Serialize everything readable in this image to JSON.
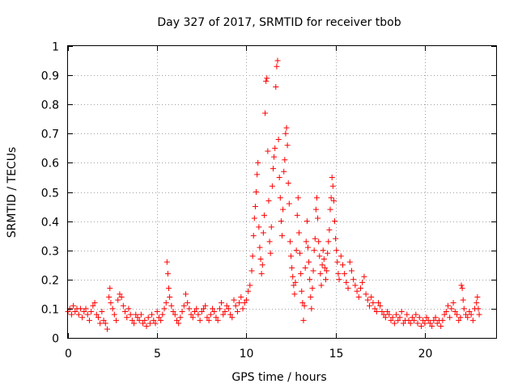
{
  "chart_data": {
    "type": "scatter",
    "title": "Day 327 of 2017, SRMTID for receiver tbob",
    "xlabel": "GPS time / hours",
    "ylabel": "SRMTID / TECUs",
    "xlim": [
      0,
      24
    ],
    "ylim": [
      0,
      1
    ],
    "x_ticks": [
      0,
      5,
      10,
      15,
      20
    ],
    "y_ticks": [
      0,
      0.1,
      0.2,
      0.3,
      0.4,
      0.5,
      0.6,
      0.7,
      0.8,
      0.9,
      1
    ],
    "x_tick_labels": [
      "0",
      "5",
      "10",
      "15",
      "20"
    ],
    "y_tick_labels": [
      "0",
      "0.1",
      "0.2",
      "0.3",
      "0.4",
      "0.5",
      "0.6",
      "0.7",
      "0.8",
      "0.9",
      "1"
    ],
    "grid": true,
    "marker": "plus",
    "marker_color": "#ff0000",
    "series": [
      {
        "name": "SRMTID",
        "points": [
          [
            0.0,
            0.09
          ],
          [
            0.1,
            0.1
          ],
          [
            0.2,
            0.08
          ],
          [
            0.3,
            0.11
          ],
          [
            0.4,
            0.09
          ],
          [
            0.5,
            0.1
          ],
          [
            0.6,
            0.08
          ],
          [
            0.7,
            0.1
          ],
          [
            0.8,
            0.07
          ],
          [
            0.9,
            0.09
          ],
          [
            1.0,
            0.1
          ],
          [
            1.1,
            0.08
          ],
          [
            1.2,
            0.06
          ],
          [
            1.3,
            0.09
          ],
          [
            1.4,
            0.11
          ],
          [
            1.5,
            0.12
          ],
          [
            1.6,
            0.08
          ],
          [
            1.7,
            0.07
          ],
          [
            1.8,
            0.05
          ],
          [
            1.9,
            0.09
          ],
          [
            2.0,
            0.06
          ],
          [
            2.1,
            0.05
          ],
          [
            2.2,
            0.03
          ],
          [
            2.3,
            0.14
          ],
          [
            2.35,
            0.17
          ],
          [
            2.4,
            0.12
          ],
          [
            2.5,
            0.1
          ],
          [
            2.6,
            0.08
          ],
          [
            2.7,
            0.06
          ],
          [
            2.8,
            0.13
          ],
          [
            2.9,
            0.15
          ],
          [
            3.0,
            0.14
          ],
          [
            3.1,
            0.11
          ],
          [
            3.2,
            0.09
          ],
          [
            3.3,
            0.07
          ],
          [
            3.4,
            0.1
          ],
          [
            3.5,
            0.08
          ],
          [
            3.6,
            0.06
          ],
          [
            3.7,
            0.05
          ],
          [
            3.8,
            0.08
          ],
          [
            3.9,
            0.07
          ],
          [
            4.0,
            0.06
          ],
          [
            4.1,
            0.08
          ],
          [
            4.2,
            0.05
          ],
          [
            4.3,
            0.06
          ],
          [
            4.4,
            0.04
          ],
          [
            4.5,
            0.07
          ],
          [
            4.6,
            0.05
          ],
          [
            4.7,
            0.08
          ],
          [
            4.8,
            0.06
          ],
          [
            4.9,
            0.05
          ],
          [
            5.0,
            0.09
          ],
          [
            5.1,
            0.07
          ],
          [
            5.2,
            0.06
          ],
          [
            5.3,
            0.08
          ],
          [
            5.4,
            0.1
          ],
          [
            5.5,
            0.12
          ],
          [
            5.55,
            0.26
          ],
          [
            5.6,
            0.22
          ],
          [
            5.65,
            0.17
          ],
          [
            5.7,
            0.14
          ],
          [
            5.8,
            0.11
          ],
          [
            5.9,
            0.09
          ],
          [
            6.0,
            0.08
          ],
          [
            6.1,
            0.06
          ],
          [
            6.2,
            0.05
          ],
          [
            6.3,
            0.07
          ],
          [
            6.4,
            0.09
          ],
          [
            6.5,
            0.11
          ],
          [
            6.6,
            0.15
          ],
          [
            6.7,
            0.12
          ],
          [
            6.8,
            0.1
          ],
          [
            6.9,
            0.08
          ],
          [
            7.0,
            0.07
          ],
          [
            7.1,
            0.09
          ],
          [
            7.2,
            0.1
          ],
          [
            7.3,
            0.08
          ],
          [
            7.4,
            0.06
          ],
          [
            7.5,
            0.09
          ],
          [
            7.6,
            0.1
          ],
          [
            7.7,
            0.11
          ],
          [
            7.8,
            0.07
          ],
          [
            7.9,
            0.06
          ],
          [
            8.0,
            0.08
          ],
          [
            8.1,
            0.1
          ],
          [
            8.2,
            0.09
          ],
          [
            8.3,
            0.07
          ],
          [
            8.4,
            0.06
          ],
          [
            8.5,
            0.1
          ],
          [
            8.6,
            0.12
          ],
          [
            8.7,
            0.08
          ],
          [
            8.8,
            0.09
          ],
          [
            8.9,
            0.11
          ],
          [
            9.0,
            0.1
          ],
          [
            9.1,
            0.08
          ],
          [
            9.2,
            0.07
          ],
          [
            9.3,
            0.13
          ],
          [
            9.4,
            0.11
          ],
          [
            9.5,
            0.09
          ],
          [
            9.6,
            0.12
          ],
          [
            9.7,
            0.14
          ],
          [
            9.8,
            0.1
          ],
          [
            9.9,
            0.12
          ],
          [
            10.0,
            0.13
          ],
          [
            10.1,
            0.16
          ],
          [
            10.2,
            0.18
          ],
          [
            10.3,
            0.23
          ],
          [
            10.35,
            0.28
          ],
          [
            10.4,
            0.35
          ],
          [
            10.45,
            0.41
          ],
          [
            10.5,
            0.45
          ],
          [
            10.55,
            0.5
          ],
          [
            10.6,
            0.56
          ],
          [
            10.65,
            0.6
          ],
          [
            10.7,
            0.38
          ],
          [
            10.75,
            0.31
          ],
          [
            10.8,
            0.27
          ],
          [
            10.85,
            0.22
          ],
          [
            10.9,
            0.25
          ],
          [
            10.95,
            0.36
          ],
          [
            11.0,
            0.42
          ],
          [
            11.05,
            0.77
          ],
          [
            11.1,
            0.88
          ],
          [
            11.15,
            0.89
          ],
          [
            11.2,
            0.64
          ],
          [
            11.25,
            0.47
          ],
          [
            11.3,
            0.33
          ],
          [
            11.35,
            0.29
          ],
          [
            11.4,
            0.38
          ],
          [
            11.45,
            0.52
          ],
          [
            11.5,
            0.58
          ],
          [
            11.55,
            0.62
          ],
          [
            11.6,
            0.65
          ],
          [
            11.65,
            0.86
          ],
          [
            11.7,
            0.93
          ],
          [
            11.75,
            0.95
          ],
          [
            11.8,
            0.68
          ],
          [
            11.85,
            0.55
          ],
          [
            11.9,
            0.48
          ],
          [
            11.95,
            0.4
          ],
          [
            12.0,
            0.35
          ],
          [
            12.05,
            0.44
          ],
          [
            12.1,
            0.57
          ],
          [
            12.15,
            0.61
          ],
          [
            12.2,
            0.7
          ],
          [
            12.25,
            0.72
          ],
          [
            12.3,
            0.66
          ],
          [
            12.35,
            0.53
          ],
          [
            12.4,
            0.46
          ],
          [
            12.45,
            0.33
          ],
          [
            12.5,
            0.28
          ],
          [
            12.55,
            0.24
          ],
          [
            12.6,
            0.21
          ],
          [
            12.65,
            0.18
          ],
          [
            12.7,
            0.15
          ],
          [
            12.75,
            0.19
          ],
          [
            12.8,
            0.3
          ],
          [
            12.85,
            0.42
          ],
          [
            12.9,
            0.48
          ],
          [
            12.95,
            0.36
          ],
          [
            13.0,
            0.29
          ],
          [
            13.05,
            0.22
          ],
          [
            13.1,
            0.16
          ],
          [
            13.15,
            0.12
          ],
          [
            13.2,
            0.06
          ],
          [
            13.25,
            0.11
          ],
          [
            13.3,
            0.24
          ],
          [
            13.35,
            0.33
          ],
          [
            13.4,
            0.4
          ],
          [
            13.45,
            0.31
          ],
          [
            13.5,
            0.26
          ],
          [
            13.55,
            0.2
          ],
          [
            13.6,
            0.14
          ],
          [
            13.65,
            0.1
          ],
          [
            13.7,
            0.17
          ],
          [
            13.75,
            0.23
          ],
          [
            13.8,
            0.3
          ],
          [
            13.85,
            0.34
          ],
          [
            13.9,
            0.44
          ],
          [
            13.95,
            0.48
          ],
          [
            14.0,
            0.41
          ],
          [
            14.05,
            0.33
          ],
          [
            14.1,
            0.28
          ],
          [
            14.15,
            0.22
          ],
          [
            14.2,
            0.18
          ],
          [
            14.25,
            0.25
          ],
          [
            14.3,
            0.3
          ],
          [
            14.35,
            0.27
          ],
          [
            14.4,
            0.24
          ],
          [
            14.45,
            0.2
          ],
          [
            14.5,
            0.23
          ],
          [
            14.55,
            0.29
          ],
          [
            14.6,
            0.33
          ],
          [
            14.65,
            0.37
          ],
          [
            14.7,
            0.44
          ],
          [
            14.75,
            0.48
          ],
          [
            14.8,
            0.55
          ],
          [
            14.85,
            0.52
          ],
          [
            14.9,
            0.47
          ],
          [
            14.95,
            0.4
          ],
          [
            15.0,
            0.34
          ],
          [
            15.05,
            0.3
          ],
          [
            15.1,
            0.26
          ],
          [
            15.15,
            0.22
          ],
          [
            15.2,
            0.2
          ],
          [
            15.3,
            0.28
          ],
          [
            15.4,
            0.25
          ],
          [
            15.5,
            0.22
          ],
          [
            15.6,
            0.19
          ],
          [
            15.7,
            0.17
          ],
          [
            15.8,
            0.26
          ],
          [
            15.9,
            0.23
          ],
          [
            16.0,
            0.2
          ],
          [
            16.1,
            0.18
          ],
          [
            16.2,
            0.16
          ],
          [
            16.3,
            0.14
          ],
          [
            16.4,
            0.17
          ],
          [
            16.5,
            0.19
          ],
          [
            16.6,
            0.21
          ],
          [
            16.7,
            0.15
          ],
          [
            16.8,
            0.13
          ],
          [
            16.9,
            0.11
          ],
          [
            17.0,
            0.14
          ],
          [
            17.1,
            0.12
          ],
          [
            17.2,
            0.1
          ],
          [
            17.3,
            0.09
          ],
          [
            17.4,
            0.12
          ],
          [
            17.5,
            0.11
          ],
          [
            17.6,
            0.09
          ],
          [
            17.7,
            0.08
          ],
          [
            17.8,
            0.07
          ],
          [
            17.9,
            0.09
          ],
          [
            18.0,
            0.08
          ],
          [
            18.1,
            0.06
          ],
          [
            18.2,
            0.07
          ],
          [
            18.3,
            0.05
          ],
          [
            18.4,
            0.08
          ],
          [
            18.5,
            0.06
          ],
          [
            18.6,
            0.07
          ],
          [
            18.7,
            0.09
          ],
          [
            18.8,
            0.05
          ],
          [
            18.9,
            0.06
          ],
          [
            19.0,
            0.08
          ],
          [
            19.1,
            0.06
          ],
          [
            19.2,
            0.05
          ],
          [
            19.3,
            0.07
          ],
          [
            19.4,
            0.06
          ],
          [
            19.5,
            0.08
          ],
          [
            19.6,
            0.05
          ],
          [
            19.7,
            0.07
          ],
          [
            19.8,
            0.04
          ],
          [
            19.9,
            0.06
          ],
          [
            20.0,
            0.05
          ],
          [
            20.1,
            0.07
          ],
          [
            20.2,
            0.06
          ],
          [
            20.3,
            0.05
          ],
          [
            20.4,
            0.04
          ],
          [
            20.5,
            0.06
          ],
          [
            20.6,
            0.07
          ],
          [
            20.7,
            0.05
          ],
          [
            20.8,
            0.06
          ],
          [
            20.9,
            0.04
          ],
          [
            21.0,
            0.06
          ],
          [
            21.1,
            0.08
          ],
          [
            21.2,
            0.09
          ],
          [
            21.3,
            0.11
          ],
          [
            21.4,
            0.07
          ],
          [
            21.5,
            0.1
          ],
          [
            21.6,
            0.12
          ],
          [
            21.7,
            0.09
          ],
          [
            21.8,
            0.08
          ],
          [
            21.9,
            0.06
          ],
          [
            22.0,
            0.07
          ],
          [
            22.05,
            0.18
          ],
          [
            22.1,
            0.17
          ],
          [
            22.15,
            0.13
          ],
          [
            22.2,
            0.1
          ],
          [
            22.3,
            0.08
          ],
          [
            22.4,
            0.07
          ],
          [
            22.5,
            0.09
          ],
          [
            22.6,
            0.08
          ],
          [
            22.7,
            0.06
          ],
          [
            22.8,
            0.1
          ],
          [
            22.9,
            0.12
          ],
          [
            22.95,
            0.14
          ],
          [
            23.0,
            0.1
          ],
          [
            23.05,
            0.08
          ]
        ]
      }
    ]
  }
}
